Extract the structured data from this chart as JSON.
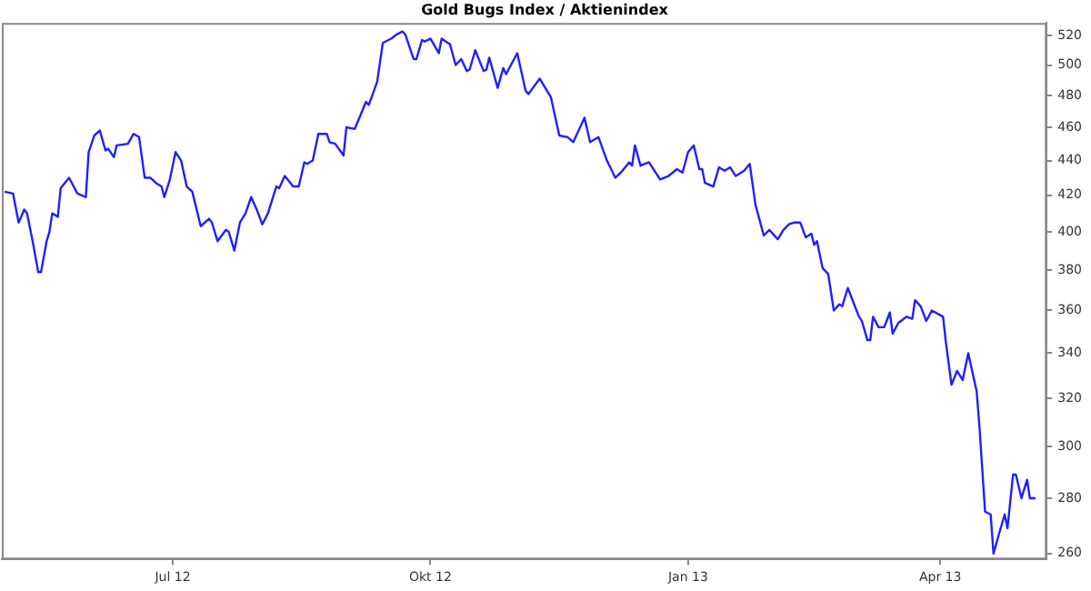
{
  "chart_data": {
    "type": "line",
    "title": "Gold Bugs Index / Aktienindex",
    "color": "#1f1fff",
    "marker": "none",
    "grid": false,
    "legend": false,
    "log": "y",
    "x": [
      "2012-05-02",
      "2012-05-05",
      "2012-05-07",
      "2012-05-09",
      "2012-05-10",
      "2012-05-12",
      "2012-05-14",
      "2012-05-15",
      "2012-05-17",
      "2012-05-18",
      "2012-05-19",
      "2012-05-21",
      "2012-05-22",
      "2012-05-25",
      "2012-05-28",
      "2012-05-31",
      "2012-06-01",
      "2012-06-03",
      "2012-06-05",
      "2012-06-07",
      "2012-06-08",
      "2012-06-10",
      "2012-06-11",
      "2012-06-15",
      "2012-06-17",
      "2012-06-19",
      "2012-06-21",
      "2012-06-23",
      "2012-06-25",
      "2012-06-27",
      "2012-06-28",
      "2012-06-30",
      "2012-07-02",
      "2012-07-04",
      "2012-07-06",
      "2012-07-08",
      "2012-07-11",
      "2012-07-14",
      "2012-07-15",
      "2012-07-17",
      "2012-07-20",
      "2012-07-21",
      "2012-07-23",
      "2012-07-25",
      "2012-07-27",
      "2012-07-29",
      "2012-07-31",
      "2012-08-02",
      "2012-08-04",
      "2012-08-07",
      "2012-08-08",
      "2012-08-10",
      "2012-08-13",
      "2012-08-15",
      "2012-08-17",
      "2012-08-18",
      "2012-08-20",
      "2012-08-22",
      "2012-08-25",
      "2012-08-26",
      "2012-08-28",
      "2012-08-31",
      "2012-09-01",
      "2012-09-04",
      "2012-09-08",
      "2012-09-09",
      "2012-09-12",
      "2012-09-14",
      "2012-09-17",
      "2012-09-19",
      "2012-09-21",
      "2012-09-22",
      "2012-09-25",
      "2012-09-26",
      "2012-09-28",
      "2012-09-29",
      "2012-10-01",
      "2012-10-04",
      "2012-10-05",
      "2012-10-08",
      "2012-10-10",
      "2012-10-11",
      "2012-10-12",
      "2012-10-14",
      "2012-10-15",
      "2012-10-17",
      "2012-10-20",
      "2012-10-21",
      "2012-10-22",
      "2012-10-25",
      "2012-10-27",
      "2012-10-28",
      "2012-11-01",
      "2012-11-04",
      "2012-11-05",
      "2012-11-09",
      "2012-11-13",
      "2012-11-16",
      "2012-11-19",
      "2012-11-21",
      "2012-11-25",
      "2012-11-27",
      "2012-11-30",
      "2012-12-03",
      "2012-12-06",
      "2012-12-08",
      "2012-12-11",
      "2012-12-12",
      "2012-12-13",
      "2012-12-15",
      "2012-12-18",
      "2012-12-22",
      "2012-12-25",
      "2012-12-28",
      "2012-12-30",
      "2013-01-01",
      "2013-01-03",
      "2013-01-05",
      "2013-01-06",
      "2013-01-07",
      "2013-01-10",
      "2013-01-12",
      "2013-01-14",
      "2013-01-16",
      "2013-01-18",
      "2013-01-21",
      "2013-01-23",
      "2013-01-25",
      "2013-01-28",
      "2013-01-30",
      "2013-02-02",
      "2013-02-04",
      "2013-02-06",
      "2013-02-08",
      "2013-02-10",
      "2013-02-12",
      "2013-02-14",
      "2013-02-15",
      "2013-02-16",
      "2013-02-18",
      "2013-02-20",
      "2013-02-22",
      "2013-02-24",
      "2013-02-25",
      "2013-02-27",
      "2013-03-03",
      "2013-03-04",
      "2013-03-06",
      "2013-03-07",
      "2013-03-08",
      "2013-03-10",
      "2013-03-12",
      "2013-03-14",
      "2013-03-15",
      "2013-03-17",
      "2013-03-20",
      "2013-03-22",
      "2013-03-23",
      "2013-03-25",
      "2013-03-27",
      "2013-03-29",
      "2013-04-02",
      "2013-04-03",
      "2013-04-05",
      "2013-04-07",
      "2013-04-09",
      "2013-04-11",
      "2013-04-14",
      "2013-04-15",
      "2013-04-17",
      "2013-04-19",
      "2013-04-20",
      "2013-04-22",
      "2013-04-24",
      "2013-04-25",
      "2013-04-27",
      "2013-04-28",
      "2013-04-30",
      "2013-05-02",
      "2013-05-03",
      "2013-05-05"
    ],
    "values": [
      422,
      421,
      405,
      412,
      410,
      395,
      379,
      379,
      395,
      400,
      410,
      408,
      424,
      430,
      421,
      419,
      445,
      455,
      458,
      446,
      447,
      442,
      449,
      450,
      456,
      454,
      430,
      430,
      427,
      425,
      419,
      429,
      445,
      440,
      425,
      422,
      403,
      407,
      405,
      395,
      401,
      400,
      390,
      405,
      410,
      419,
      412,
      404,
      410,
      425,
      424,
      431,
      425,
      425,
      439,
      438,
      440,
      456,
      456,
      451,
      450,
      443,
      460,
      459,
      476,
      474,
      489,
      515,
      518,
      521,
      523,
      521,
      504,
      504,
      517,
      516,
      518,
      508,
      518,
      514,
      500,
      502,
      504,
      496,
      497,
      510,
      496,
      497,
      505,
      485,
      498,
      494,
      508,
      483,
      481,
      491,
      479,
      455,
      454,
      451,
      466,
      451,
      454,
      440,
      430,
      433,
      439,
      437,
      449,
      437,
      439,
      429,
      431,
      435,
      433,
      445,
      449,
      435,
      435,
      427,
      425,
      436,
      434,
      436,
      431,
      434,
      438,
      415,
      398,
      401,
      396,
      401,
      404,
      405,
      405,
      397,
      399,
      393,
      395,
      381,
      378,
      360,
      363,
      362,
      371,
      357,
      355,
      346,
      346,
      357,
      352,
      352,
      359,
      349,
      354,
      357,
      356,
      365,
      362,
      355,
      360,
      357,
      345,
      326,
      332,
      328,
      340,
      323,
      308,
      275,
      274,
      260,
      267,
      274,
      269,
      289,
      289,
      280,
      287,
      280,
      280
    ],
    "xlim": [
      "2012-05-01",
      "2013-05-09"
    ],
    "xticks": [
      {
        "value": "2012-07-01",
        "label": "Jul 12"
      },
      {
        "value": "2012-10-01",
        "label": "Okt 12"
      },
      {
        "value": "2013-01-01",
        "label": "Jan 13"
      },
      {
        "value": "2013-04-01",
        "label": "Apr 13"
      }
    ],
    "ylim": [
      258,
      529
    ],
    "yticks": [
      260,
      280,
      300,
      320,
      340,
      360,
      380,
      400,
      420,
      440,
      460,
      480,
      500,
      520
    ]
  }
}
